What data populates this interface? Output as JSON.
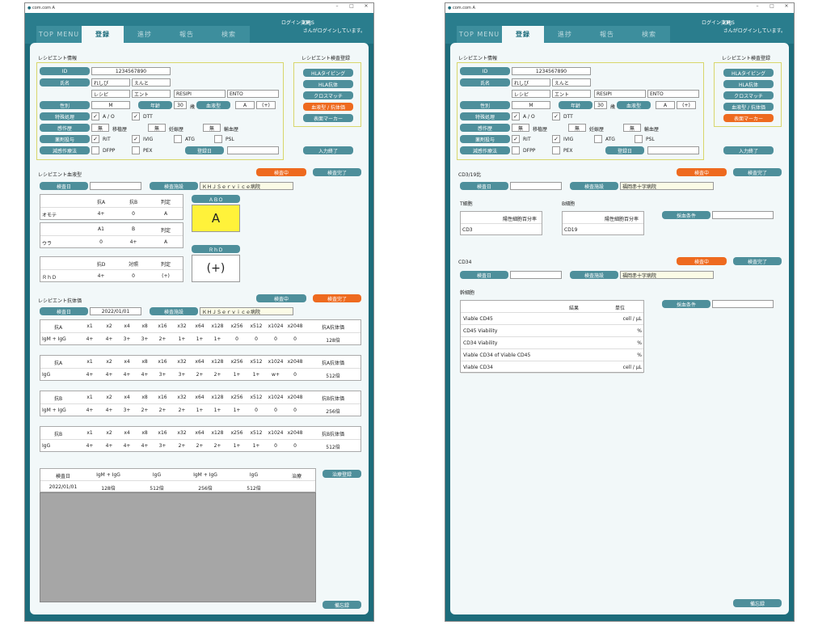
{
  "title": "com.com A",
  "nav": {
    "tabs": [
      "TOP MENU",
      "登録",
      "進捗",
      "報告",
      "検索"
    ],
    "login_change": "ログイン変更",
    "user": "KHJS",
    "user_msg": "さんがログインしています。"
  },
  "left": {
    "recipient_info": "レシピエント情報",
    "id_label": "ID",
    "id_value": "1234567890",
    "name_label": "氏名",
    "name1": "れしぴ",
    "name2": "えんと",
    "kana1": "レシピ",
    "kana2": "エント",
    "roma1": "RESIPI",
    "roma2": "ENTO",
    "sex_label": "性別",
    "sex_value": "M",
    "age_label": "年齢",
    "age_value": "30",
    "age_unit": "歳",
    "blood_label": "血液型",
    "blood_abo": "A",
    "blood_rh": "(+)",
    "special_label": "特殊処理",
    "ao": "A / O",
    "dtt": "DTT",
    "history_label": "感作歴",
    "none": "無",
    "transplant_hist": "移植歴",
    "preg_hist": "妊娠歴",
    "transf_hist": "輸血歴",
    "pre_label": "薬剤投与",
    "rit": "RIT",
    "ivig": "IVIG",
    "atg": "ATG",
    "psl": "PSL",
    "desens_label": "減感作療法",
    "dfpp": "DFPP",
    "pex": "PEX",
    "reg_label": "登録日",
    "check_title": "レシピエント検査登録",
    "check_buttons": [
      "HLAタイピング",
      "HLA抗体",
      "クロスマッチ",
      "血液型 / 抗体価",
      "表面マーカー"
    ],
    "input_done": "入力終了",
    "blood_title": "レシピエント血液型",
    "in_test": "検査中",
    "test_done": "検査完了",
    "test_date": "検査日",
    "test_facility": "検査施設",
    "facility_value": "ＫＨＪＳｅｒｖｉｃｅ病院",
    "abo_title": "ＡＢＯ",
    "abo_value": "A",
    "rhd_title": "ＲｈＤ",
    "rhd_value": "(+)",
    "omote": {
      "head": [
        "抗A",
        "抗B",
        "判定"
      ],
      "row": [
        "オモテ",
        "4+",
        "0",
        "A"
      ]
    },
    "ura": {
      "head": [
        "A1",
        "B",
        "判定"
      ],
      "row": [
        "ウラ",
        "0",
        "4+",
        "A"
      ]
    },
    "rhd": {
      "head": [
        "抗D",
        "対照",
        "判定"
      ],
      "row": [
        "ＲｈＤ",
        "4+",
        "0",
        "(+)"
      ]
    },
    "antibody_title": "レシピエント抗体価",
    "ab_date": "2022/01/01",
    "titer_heads": [
      "x1",
      "x2",
      "x4",
      "x8",
      "x16",
      "x32",
      "x64",
      "x128",
      "x256",
      "x512",
      "x1024",
      "x2048"
    ],
    "titer_tables": [
      {
        "h0": "抗A",
        "hl": "抗A抗体価",
        "r0": "IgM + IgG",
        "vals": [
          "4+",
          "4+",
          "3+",
          "3+",
          "2+",
          "1+",
          "1+",
          "1+",
          "0",
          "0",
          "0",
          "0"
        ],
        "res": "128倍"
      },
      {
        "h0": "抗A",
        "hl": "抗A抗体価",
        "r0": "IgG",
        "vals": [
          "4+",
          "4+",
          "4+",
          "4+",
          "3+",
          "3+",
          "2+",
          "2+",
          "1+",
          "1+",
          "w+",
          "0"
        ],
        "res": "512倍"
      },
      {
        "h0": "抗B",
        "hl": "抗B抗体価",
        "r0": "IgM + IgG",
        "vals": [
          "4+",
          "4+",
          "3+",
          "2+",
          "2+",
          "2+",
          "1+",
          "1+",
          "1+",
          "0",
          "0",
          "0"
        ],
        "res": "256倍"
      },
      {
        "h0": "抗B",
        "hl": "抗B抗体価",
        "r0": "IgG",
        "vals": [
          "4+",
          "4+",
          "4+",
          "4+",
          "3+",
          "2+",
          "2+",
          "2+",
          "1+",
          "1+",
          "0",
          "0"
        ],
        "res": "512倍"
      }
    ],
    "summary_head": [
      "検査日",
      "IgM + IgG",
      "IgG",
      "IgM + IgG",
      "IgG",
      "治療"
    ],
    "summary_row": [
      "2022/01/01",
      "128倍",
      "512倍",
      "256倍",
      "512倍",
      ""
    ],
    "treat_reg": "治療登録",
    "memo": "備忘録"
  },
  "right": {
    "cd_title": "CD3/19比",
    "cd_facility": "福岡赤十字病院",
    "t_cell": "T細胞",
    "b_cell": "B細胞",
    "pos_rate": "陽性細胞百分率",
    "cd3": "CD3",
    "cd19": "CD19",
    "collect_cond": "採血条件",
    "cd34": "CD34",
    "stem": "幹細胞",
    "stem_head": [
      "結果",
      "単位"
    ],
    "stem_rows": [
      [
        "Viable CD45",
        "cell / μL"
      ],
      [
        "CD45 Viability",
        "%"
      ],
      [
        "CD34 Viability",
        "%"
      ],
      [
        "Viable CD34 of Viable CD45",
        "%"
      ],
      [
        "Viable CD34",
        "cell / μL"
      ]
    ]
  }
}
